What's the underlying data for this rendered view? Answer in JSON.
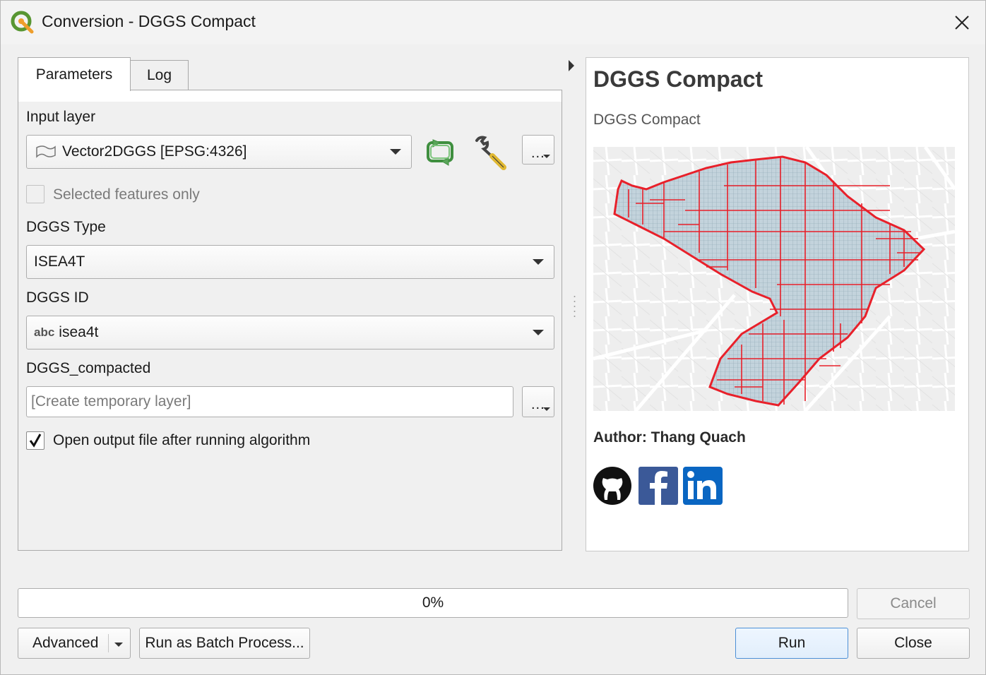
{
  "window": {
    "title": "Conversion - DGGS Compact"
  },
  "tabs": [
    {
      "label": "Parameters",
      "active": true
    },
    {
      "label": "Log",
      "active": false
    }
  ],
  "params": {
    "input_layer_label": "Input layer",
    "input_layer_value": "Vector2DGGS [EPSG:4326]",
    "selected_only_label": "Selected features only",
    "selected_only_checked": false,
    "dggs_type_label": "DGGS Type",
    "dggs_type_value": "ISEA4T",
    "dggs_id_label": "DGGS ID",
    "dggs_id_prefix": "abc",
    "dggs_id_value": "isea4t",
    "output_label": "DGGS_compacted",
    "output_placeholder": "[Create temporary layer]",
    "open_output_label": "Open output file after running algorithm",
    "open_output_checked": true,
    "browse_label": "..."
  },
  "help": {
    "title": "DGGS Compact",
    "subtitle": "DGGS Compact",
    "author": "Author: Thang Quach",
    "social": [
      "github-icon",
      "facebook-icon",
      "linkedin-icon"
    ]
  },
  "progress": {
    "value": 0,
    "label": "0%"
  },
  "buttons": {
    "cancel": "Cancel",
    "advanced": "Advanced",
    "batch": "Run as Batch Process...",
    "run": "Run",
    "close": "Close"
  },
  "colors": {
    "accent": "#4c8fd6",
    "cell_outline": "#e8202a",
    "cell_fill": "#c3d3dc",
    "refresh_green": "#5aa55a"
  }
}
